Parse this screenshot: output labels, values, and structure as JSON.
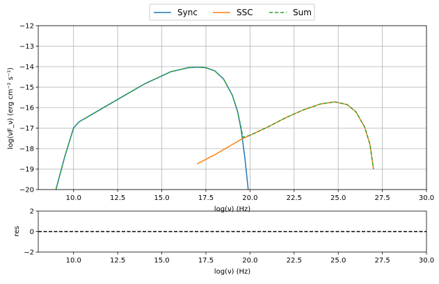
{
  "chart_data": [
    {
      "type": "line",
      "title": "",
      "xlabel": "log(ν)  (Hz)",
      "ylabel": "log(νF_ν)  (erg cm⁻² s⁻¹)",
      "xlim": [
        8,
        30
      ],
      "ylim": [
        -20,
        -12
      ],
      "x_ticks": [
        "10.0",
        "12.5",
        "15.0",
        "17.5",
        "20.0",
        "22.5",
        "25.0",
        "27.5",
        "30.0"
      ],
      "y_ticks": [
        "−12",
        "−13",
        "−14",
        "−15",
        "−16",
        "−17",
        "−18",
        "−19",
        "−20"
      ],
      "grid": true,
      "legend_position": "top-center",
      "series": [
        {
          "name": "Sync",
          "color": "#1f77b4",
          "style": "solid",
          "x": [
            9.0,
            9.5,
            10.0,
            10.3,
            11.0,
            12.5,
            14.0,
            15.5,
            16.5,
            17.0,
            17.5,
            18.0,
            18.5,
            19.0,
            19.3,
            19.5,
            19.7,
            19.8,
            19.9
          ],
          "y": [
            -20.0,
            -18.4,
            -17.0,
            -16.7,
            -16.35,
            -15.6,
            -14.85,
            -14.25,
            -14.05,
            -14.02,
            -14.05,
            -14.2,
            -14.6,
            -15.4,
            -16.2,
            -17.1,
            -18.4,
            -19.2,
            -20.0
          ]
        },
        {
          "name": "SSC",
          "color": "#ff7f0e",
          "style": "solid",
          "x": [
            17.0,
            18.0,
            19.0,
            19.6,
            20.0,
            21.0,
            22.0,
            23.0,
            24.0,
            24.8,
            25.5,
            26.0,
            26.5,
            26.8,
            27.0
          ],
          "y": [
            -18.75,
            -18.3,
            -17.8,
            -17.5,
            -17.35,
            -16.95,
            -16.5,
            -16.12,
            -15.82,
            -15.72,
            -15.85,
            -16.2,
            -16.95,
            -17.8,
            -19.0
          ]
        },
        {
          "name": "Sum",
          "color": "#2ca02c",
          "style": "dashed",
          "x": [
            9.0,
            9.5,
            10.0,
            10.3,
            11.0,
            12.5,
            14.0,
            15.5,
            16.5,
            17.0,
            17.5,
            18.0,
            18.5,
            19.0,
            19.3,
            19.5,
            19.6,
            20.0,
            21.0,
            22.0,
            23.0,
            24.0,
            24.8,
            25.5,
            26.0,
            26.5,
            26.8,
            27.0
          ],
          "y": [
            -20.0,
            -18.4,
            -17.0,
            -16.7,
            -16.35,
            -15.6,
            -14.85,
            -14.25,
            -14.05,
            -14.02,
            -14.05,
            -14.2,
            -14.6,
            -15.4,
            -16.2,
            -17.0,
            -17.45,
            -17.35,
            -16.95,
            -16.5,
            -16.12,
            -15.82,
            -15.72,
            -15.85,
            -16.2,
            -16.95,
            -17.8,
            -19.0
          ]
        }
      ]
    },
    {
      "type": "line",
      "title": "",
      "xlabel": "log(ν)  (Hz)",
      "ylabel": "res",
      "xlim": [
        8,
        30
      ],
      "ylim": [
        -2,
        2
      ],
      "x_ticks": [
        "10.0",
        "12.5",
        "15.0",
        "17.5",
        "20.0",
        "22.5",
        "25.0",
        "27.5",
        "30.0"
      ],
      "y_ticks": [
        "2",
        "0",
        "−2"
      ],
      "grid": false,
      "series": [
        {
          "color": "#000000",
          "style": "dashed",
          "x": [
            8,
            30
          ],
          "y": [
            0,
            0
          ]
        }
      ]
    }
  ]
}
